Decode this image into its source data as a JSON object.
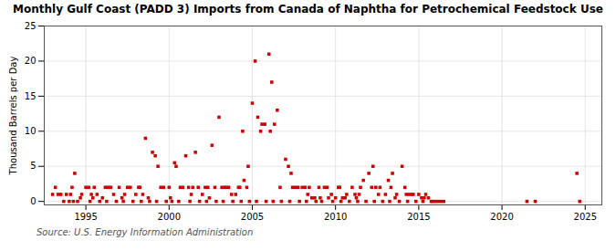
{
  "chart_data": {
    "type": "scatter",
    "title": "Monthly Gulf Coast (PADD 3) Imports from Canada of Naphtha for Petrochemical Feedstock Use",
    "ylabel": "Thousand Barrels per Day",
    "annotations": [
      "Source: U.S. Energy Information Administration"
    ],
    "color": "#cc0000",
    "marker": "square",
    "grid": true,
    "xlim": [
      1992.5,
      2026
    ],
    "ylim": [
      -0.5,
      25
    ],
    "xticks": [
      1995,
      2000,
      2005,
      2010,
      2015,
      2020,
      2025
    ],
    "yticks": [
      0,
      5,
      10,
      15,
      20,
      25
    ],
    "x": [
      1993.0,
      1993.17,
      1993.33,
      1993.5,
      1993.67,
      1993.83,
      1994.0,
      1994.08,
      1994.17,
      1994.25,
      1994.33,
      1994.5,
      1994.67,
      1994.75,
      1995.0,
      1995.17,
      1995.25,
      1995.33,
      1995.42,
      1995.5,
      1995.67,
      1995.83,
      1996.0,
      1996.17,
      1996.25,
      1996.33,
      1996.5,
      1996.67,
      1996.83,
      1997.0,
      1997.17,
      1997.25,
      1997.33,
      1997.5,
      1997.67,
      1997.83,
      1998.0,
      1998.17,
      1998.25,
      1998.33,
      1998.42,
      1998.58,
      1998.75,
      1998.83,
      1999.0,
      1999.17,
      1999.25,
      1999.33,
      1999.5,
      1999.67,
      1999.83,
      2000.0,
      2000.08,
      2000.17,
      2000.33,
      2000.42,
      2000.58,
      2000.67,
      2000.83,
      2001.0,
      2001.17,
      2001.25,
      2001.33,
      2001.42,
      2001.58,
      2001.75,
      2001.83,
      2002.0,
      2002.17,
      2002.25,
      2002.33,
      2002.42,
      2002.58,
      2002.75,
      2002.83,
      2003.0,
      2003.17,
      2003.25,
      2003.33,
      2003.42,
      2003.58,
      2003.75,
      2003.83,
      2004.0,
      2004.17,
      2004.25,
      2004.33,
      2004.42,
      2004.5,
      2004.67,
      2004.75,
      2004.83,
      2005.0,
      2005.17,
      2005.25,
      2005.33,
      2005.5,
      2005.58,
      2005.75,
      2005.83,
      2006.0,
      2006.08,
      2006.17,
      2006.25,
      2006.33,
      2006.5,
      2006.67,
      2006.75,
      2007.0,
      2007.17,
      2007.25,
      2007.33,
      2007.42,
      2007.58,
      2007.75,
      2007.83,
      2008.0,
      2008.17,
      2008.25,
      2008.33,
      2008.42,
      2008.58,
      2008.75,
      2008.83,
      2009.0,
      2009.08,
      2009.17,
      2009.33,
      2009.5,
      2009.58,
      2009.75,
      2009.83,
      2010.0,
      2010.17,
      2010.25,
      2010.33,
      2010.42,
      2010.58,
      2010.67,
      2010.83,
      2011.0,
      2011.17,
      2011.25,
      2011.33,
      2011.42,
      2011.5,
      2011.67,
      2011.83,
      2012.0,
      2012.17,
      2012.25,
      2012.33,
      2012.42,
      2012.58,
      2012.67,
      2012.83,
      2013.0,
      2013.17,
      2013.25,
      2013.33,
      2013.42,
      2013.58,
      2013.67,
      2013.83,
      2014.0,
      2014.17,
      2014.25,
      2014.33,
      2014.42,
      2014.58,
      2014.67,
      2014.83,
      2015.0,
      2015.17,
      2015.25,
      2015.33,
      2015.42,
      2015.58,
      2015.75,
      2015.83,
      2016.0,
      2016.17,
      2016.33,
      2016.5,
      2021.5,
      2022.0,
      2024.5,
      2024.67
    ],
    "values": [
      1.0,
      2.0,
      1.0,
      1.0,
      0.0,
      1.0,
      0.0,
      1.0,
      2.0,
      0.0,
      4.0,
      0.0,
      0.5,
      1.0,
      2.0,
      2.0,
      0.0,
      1.0,
      0.5,
      2.0,
      1.0,
      0.0,
      0.5,
      2.0,
      0.0,
      2.0,
      2.0,
      1.0,
      0.0,
      2.0,
      0.5,
      0.0,
      1.0,
      2.0,
      2.0,
      0.0,
      1.0,
      2.0,
      2.0,
      0.0,
      1.0,
      9.0,
      0.5,
      0.0,
      7.0,
      6.5,
      0.0,
      5.0,
      2.0,
      2.0,
      0.0,
      2.0,
      0.5,
      0.0,
      5.5,
      5.0,
      0.0,
      2.0,
      2.0,
      6.5,
      2.0,
      0.0,
      1.0,
      2.0,
      7.0,
      2.0,
      0.0,
      1.0,
      2.0,
      0.0,
      2.0,
      0.5,
      8.0,
      2.0,
      0.0,
      12.0,
      2.0,
      0.0,
      2.0,
      2.0,
      2.0,
      1.0,
      0.0,
      1.0,
      2.0,
      2.0,
      0.0,
      10.0,
      3.0,
      2.0,
      5.0,
      0.0,
      14.0,
      20.0,
      0.0,
      12.0,
      10.0,
      11.0,
      11.0,
      0.0,
      21.0,
      10.0,
      17.0,
      0.0,
      11.0,
      13.0,
      2.0,
      0.0,
      6.0,
      5.0,
      0.0,
      4.0,
      2.0,
      2.0,
      2.0,
      0.0,
      2.0,
      2.0,
      0.0,
      1.0,
      2.0,
      0.5,
      0.5,
      0.0,
      2.0,
      0.5,
      0.0,
      2.0,
      2.0,
      0.5,
      1.0,
      0.0,
      0.5,
      2.0,
      2.0,
      0.0,
      0.5,
      0.5,
      1.0,
      0.0,
      2.0,
      1.0,
      0.5,
      0.0,
      1.0,
      2.0,
      3.0,
      0.0,
      4.0,
      2.0,
      5.0,
      0.0,
      2.0,
      1.0,
      2.0,
      0.0,
      1.0,
      3.0,
      0.0,
      2.0,
      4.0,
      0.5,
      1.0,
      0.0,
      5.0,
      2.0,
      1.0,
      0.0,
      1.0,
      1.0,
      1.0,
      0.0,
      1.0,
      0.5,
      0.0,
      0.5,
      1.0,
      0.5,
      0.0,
      0.0,
      0.0,
      0.0,
      0.0,
      0.0,
      0.0,
      0.0,
      4.0,
      0.0
    ]
  }
}
